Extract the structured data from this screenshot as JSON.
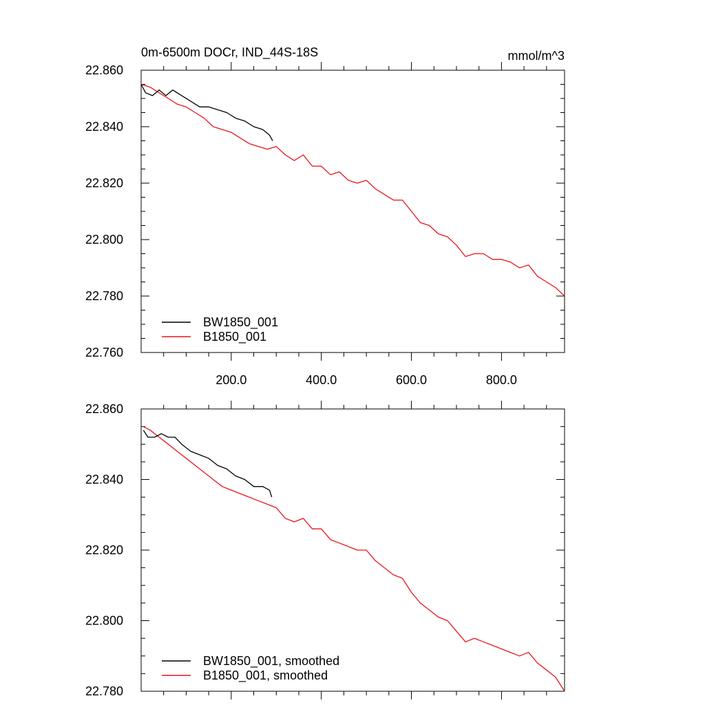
{
  "chart_data": [
    {
      "type": "line",
      "title": "0m-6500m DOCr, IND_44S-18S",
      "units": "mmol/m^3",
      "xlim": [
        0,
        940
      ],
      "ylim": [
        22.76,
        22.86
      ],
      "xticks": [
        200,
        400,
        600,
        800
      ],
      "xtick_labels": [
        "200.0",
        "400.0",
        "600.0",
        "800.0"
      ],
      "yticks": [
        22.76,
        22.78,
        22.8,
        22.82,
        22.84,
        22.86
      ],
      "ytick_labels": [
        "22.760",
        "22.780",
        "22.800",
        "22.820",
        "22.840",
        "22.860"
      ],
      "series": [
        {
          "name": "BW1850_001",
          "color": "#000000",
          "x": [
            0,
            10,
            25,
            40,
            55,
            70,
            90,
            110,
            130,
            150,
            170,
            190,
            210,
            230,
            250,
            270,
            285,
            292
          ],
          "y": [
            22.855,
            22.852,
            22.851,
            22.853,
            22.851,
            22.853,
            22.851,
            22.849,
            22.847,
            22.847,
            22.846,
            22.845,
            22.843,
            22.842,
            22.84,
            22.839,
            22.837,
            22.835
          ]
        },
        {
          "name": "B1850_001",
          "color": "#e8141a",
          "x": [
            0,
            20,
            40,
            60,
            80,
            100,
            120,
            140,
            160,
            180,
            200,
            220,
            240,
            260,
            280,
            300,
            320,
            340,
            360,
            380,
            400,
            420,
            440,
            460,
            480,
            500,
            520,
            540,
            560,
            580,
            600,
            620,
            640,
            660,
            680,
            700,
            720,
            740,
            760,
            780,
            800,
            820,
            840,
            860,
            880,
            900,
            920,
            940
          ],
          "y": [
            22.855,
            22.854,
            22.852,
            22.85,
            22.848,
            22.847,
            22.845,
            22.843,
            22.84,
            22.839,
            22.838,
            22.836,
            22.834,
            22.833,
            22.832,
            22.833,
            22.83,
            22.828,
            22.83,
            22.826,
            22.826,
            22.823,
            22.824,
            22.821,
            22.82,
            22.821,
            22.818,
            22.816,
            22.814,
            22.814,
            22.81,
            22.806,
            22.805,
            22.802,
            22.801,
            22.798,
            22.794,
            22.795,
            22.795,
            22.793,
            22.793,
            22.792,
            22.79,
            22.791,
            22.787,
            22.785,
            22.783,
            22.78
          ]
        }
      ]
    },
    {
      "type": "line",
      "title": "",
      "xlim": [
        0,
        940
      ],
      "ylim": [
        22.78,
        22.86
      ],
      "xticks": [
        200,
        400,
        600,
        800
      ],
      "xtick_labels": [],
      "yticks": [
        22.78,
        22.8,
        22.82,
        22.84,
        22.86
      ],
      "ytick_labels": [
        "22.780",
        "22.800",
        "22.820",
        "22.840",
        "22.860"
      ],
      "series": [
        {
          "name": "BW1850_001, smoothed",
          "color": "#000000",
          "x": [
            5,
            15,
            30,
            45,
            60,
            75,
            90,
            110,
            130,
            150,
            170,
            190,
            210,
            230,
            250,
            270,
            285,
            290
          ],
          "y": [
            22.854,
            22.852,
            22.852,
            22.853,
            22.852,
            22.852,
            22.85,
            22.848,
            22.847,
            22.846,
            22.844,
            22.843,
            22.841,
            22.84,
            22.838,
            22.838,
            22.837,
            22.835
          ]
        },
        {
          "name": "B1850_001, smoothed",
          "color": "#e8141a",
          "x": [
            5,
            20,
            40,
            60,
            80,
            100,
            120,
            140,
            160,
            180,
            200,
            220,
            240,
            260,
            280,
            300,
            320,
            340,
            360,
            380,
            400,
            420,
            440,
            460,
            480,
            500,
            520,
            540,
            560,
            580,
            600,
            620,
            640,
            660,
            680,
            700,
            720,
            740,
            760,
            780,
            800,
            820,
            840,
            860,
            880,
            900,
            920,
            940
          ],
          "y": [
            22.855,
            22.854,
            22.852,
            22.85,
            22.848,
            22.846,
            22.844,
            22.842,
            22.84,
            22.838,
            22.837,
            22.836,
            22.835,
            22.834,
            22.833,
            22.832,
            22.829,
            22.828,
            22.829,
            22.826,
            22.826,
            22.823,
            22.822,
            22.821,
            22.82,
            22.82,
            22.817,
            22.815,
            22.813,
            22.812,
            22.808,
            22.805,
            22.803,
            22.801,
            22.8,
            22.797,
            22.794,
            22.795,
            22.794,
            22.793,
            22.792,
            22.791,
            22.79,
            22.791,
            22.788,
            22.786,
            22.784,
            22.78
          ]
        }
      ]
    }
  ]
}
